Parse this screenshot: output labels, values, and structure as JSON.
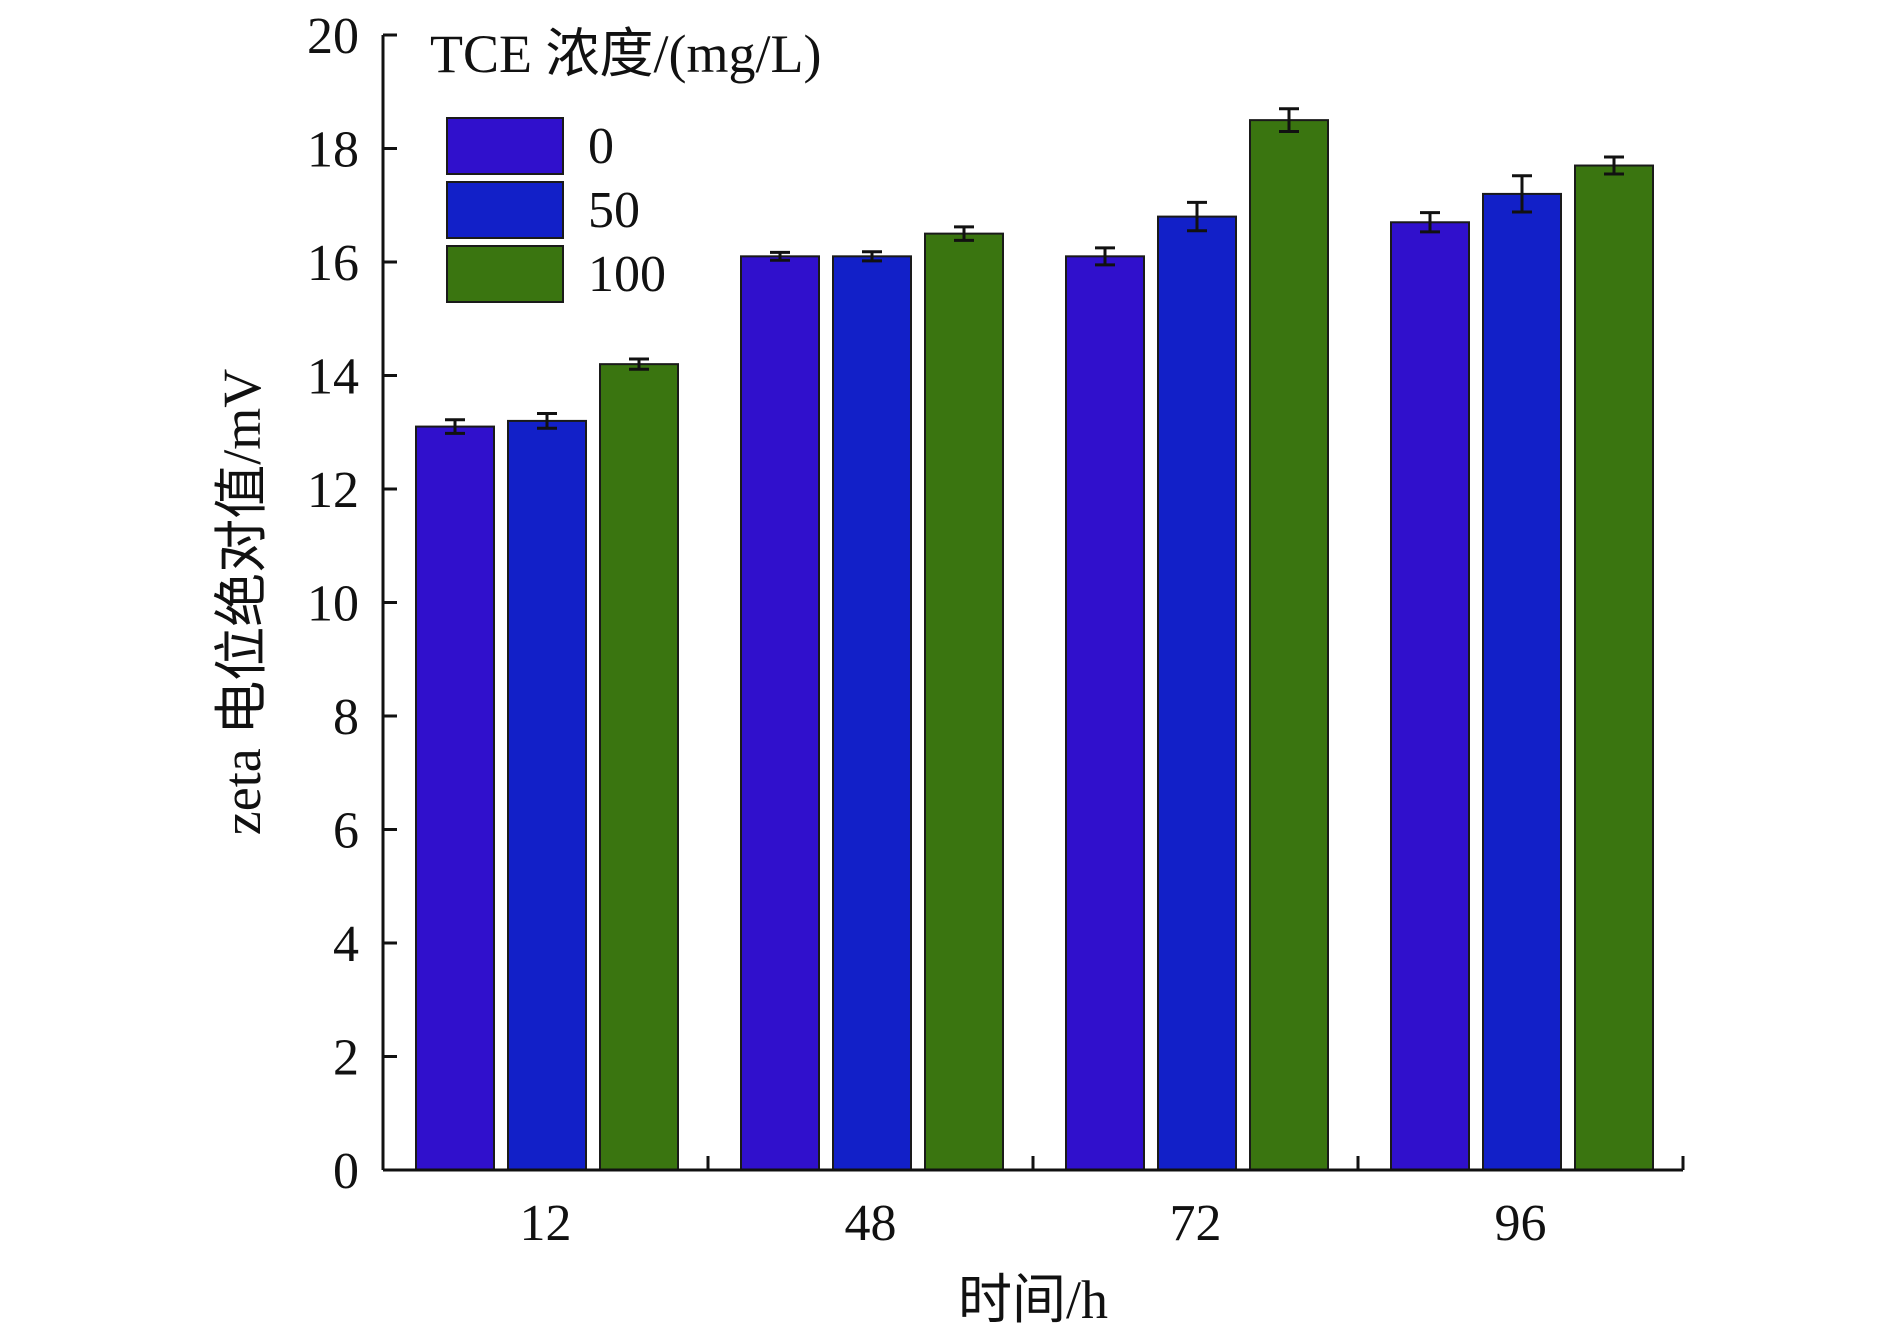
{
  "chart_data": {
    "type": "bar",
    "title": "",
    "xlabel": "时间/h",
    "ylabel": "zeta 电位绝对值/mV",
    "categories": [
      "12",
      "48",
      "72",
      "96"
    ],
    "ylim": [
      0,
      20
    ],
    "yticks": [
      "0",
      "2",
      "4",
      "6",
      "8",
      "10",
      "12",
      "14",
      "16",
      "18",
      "20"
    ],
    "grid": false,
    "legend": {
      "title": "TCE 浓度/(mg/L)",
      "placement": "top-left"
    },
    "series": [
      {
        "name": "0",
        "color": "#3010cc",
        "values": [
          13.1,
          16.1,
          16.1,
          16.7
        ],
        "errors": [
          0.12,
          0.07,
          0.15,
          0.17
        ]
      },
      {
        "name": "50",
        "color": "#1220c8",
        "values": [
          13.2,
          16.1,
          16.8,
          17.2
        ],
        "errors": [
          0.13,
          0.08,
          0.25,
          0.32
        ]
      },
      {
        "name": "100",
        "color": "#3a7510",
        "values": [
          14.2,
          16.5,
          18.5,
          17.7
        ],
        "errors": [
          0.09,
          0.12,
          0.2,
          0.15
        ]
      }
    ]
  }
}
